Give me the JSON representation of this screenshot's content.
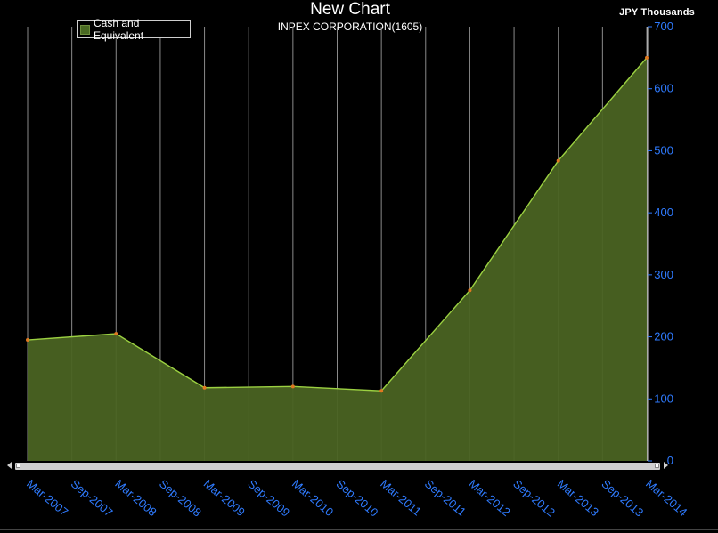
{
  "chart_data": {
    "type": "area",
    "title": "New Chart",
    "subtitle": "INPEX CORPORATION(1605)",
    "units": "JPY  Thousands",
    "categories": [
      "Mar-2007",
      "Sep-2007",
      "Mar-2008",
      "Sep-2008",
      "Mar-2009",
      "Sep-2009",
      "Mar-2010",
      "Sep-2010",
      "Mar-2011",
      "Sep-2011",
      "Mar-2012",
      "Sep-2012",
      "Mar-2013",
      "Sep-2013",
      "Mar-2014"
    ],
    "series": [
      {
        "name": "Cash and Equivalent",
        "points": [
          {
            "x": "Mar-2007",
            "y": 195
          },
          {
            "x": "Mar-2008",
            "y": 205
          },
          {
            "x": "Mar-2009",
            "y": 118
          },
          {
            "x": "Mar-2010",
            "y": 120
          },
          {
            "x": "Mar-2011",
            "y": 113
          },
          {
            "x": "Mar-2012",
            "y": 275
          },
          {
            "x": "Mar-2013",
            "y": 484
          },
          {
            "x": "Mar-2014",
            "y": 650
          }
        ],
        "fill_color": "#4a6322",
        "line_color": "#9bd041",
        "marker_color": "#e07820"
      }
    ],
    "yticks": [
      0,
      100,
      200,
      300,
      400,
      500,
      600,
      700
    ],
    "ylim": [
      0,
      700
    ],
    "y_axis_position": "right",
    "grid": "vertical",
    "legend_position": "top-left"
  }
}
